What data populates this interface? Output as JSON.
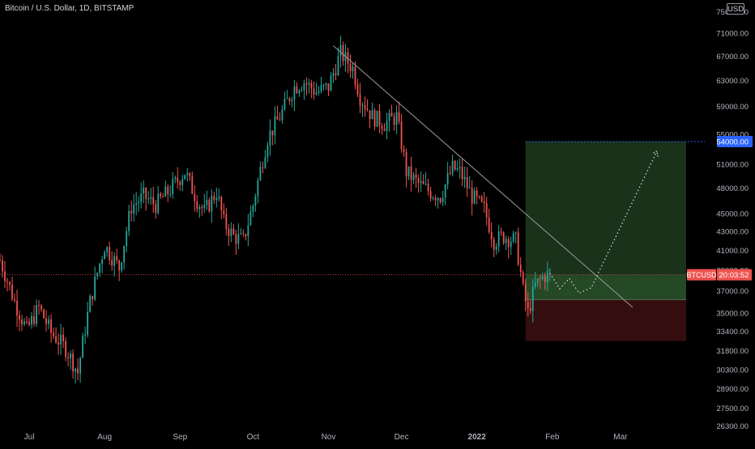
{
  "header": {
    "title": "Bitcoin / U.S. Dollar, 1D, BITSTAMP",
    "currency": "USD"
  },
  "colors": {
    "background": "#000000",
    "up": "#26a69a",
    "down": "#ef5350",
    "text": "#b2b5be",
    "trendline": "#9a9a9a",
    "target_zone": "#1f3a1f",
    "stop_zone": "#3a1010",
    "target_line": "#2962ff"
  },
  "chart_data": {
    "type": "candlestick",
    "symbol": "BTCUSD",
    "timeframe": "1D",
    "y_scale": "log",
    "ylim": [
      26000,
      76000
    ],
    "x_ticks": [
      {
        "label": "Jul",
        "day": 1
      },
      {
        "label": "Aug",
        "day": 32
      },
      {
        "label": "Sep",
        "day": 63
      },
      {
        "label": "Oct",
        "day": 93
      },
      {
        "label": "Nov",
        "day": 124
      },
      {
        "label": "Dec",
        "day": 154
      },
      {
        "label": "2022",
        "day": 185
      },
      {
        "label": "Feb",
        "day": 216
      },
      {
        "label": "Mar",
        "day": 244
      }
    ],
    "x_range_days": [
      -11,
      278
    ],
    "y_ticks": [
      75000,
      71000,
      67000,
      63000,
      59000,
      55000,
      51000,
      48000,
      45000,
      43000,
      41000,
      39000,
      37000,
      35000,
      33400,
      31800,
      30300,
      28900,
      27500,
      26300
    ],
    "y_tick_labels": [
      "75000.00",
      "71000.00",
      "67000.00",
      "63000.00",
      "59000.00",
      "55000.00",
      "51000.00",
      "48000.00",
      "45000.00",
      "43000.00",
      "41000.00",
      "39000.00",
      "37000.00",
      "35000.00",
      "33400.00",
      "31800.00",
      "30300.00",
      "28900.00",
      "27500.00",
      "26300.00"
    ],
    "keyframes": [
      {
        "day": -11,
        "price": 40000
      },
      {
        "day": -5,
        "price": 36000
      },
      {
        "day": 0,
        "price": 33500
      },
      {
        "day": 5,
        "price": 35500
      },
      {
        "day": 10,
        "price": 33300
      },
      {
        "day": 16,
        "price": 32000
      },
      {
        "day": 21,
        "price": 30100
      },
      {
        "day": 26,
        "price": 36000
      },
      {
        "day": 32,
        "price": 41500
      },
      {
        "day": 38,
        "price": 39200
      },
      {
        "day": 43,
        "price": 45800
      },
      {
        "day": 48,
        "price": 47000
      },
      {
        "day": 53,
        "price": 46000
      },
      {
        "day": 58,
        "price": 47500
      },
      {
        "day": 65,
        "price": 50000
      },
      {
        "day": 70,
        "price": 46500
      },
      {
        "day": 73,
        "price": 45200
      },
      {
        "day": 78,
        "price": 47500
      },
      {
        "day": 81,
        "price": 44000
      },
      {
        "day": 85,
        "price": 42500
      },
      {
        "day": 89,
        "price": 42000
      },
      {
        "day": 93,
        "price": 46000
      },
      {
        "day": 99,
        "price": 54500
      },
      {
        "day": 104,
        "price": 57500
      },
      {
        "day": 110,
        "price": 62000
      },
      {
        "day": 114,
        "price": 62800
      },
      {
        "day": 119,
        "price": 61200
      },
      {
        "day": 124,
        "price": 62000
      },
      {
        "day": 129,
        "price": 67500
      },
      {
        "day": 134,
        "price": 65000
      },
      {
        "day": 137,
        "price": 60500
      },
      {
        "day": 142,
        "price": 57500
      },
      {
        "day": 147,
        "price": 56500
      },
      {
        "day": 152,
        "price": 57500
      },
      {
        "day": 156,
        "price": 50000
      },
      {
        "day": 161,
        "price": 48500
      },
      {
        "day": 166,
        "price": 47500
      },
      {
        "day": 170,
        "price": 47000
      },
      {
        "day": 175,
        "price": 50500
      },
      {
        "day": 178,
        "price": 50000
      },
      {
        "day": 183,
        "price": 47000
      },
      {
        "day": 188,
        "price": 45500
      },
      {
        "day": 192,
        "price": 42000
      },
      {
        "day": 196,
        "price": 42500
      },
      {
        "day": 201,
        "price": 42000
      },
      {
        "day": 204,
        "price": 37000
      },
      {
        "day": 206,
        "price": 35000
      },
      {
        "day": 209,
        "price": 37500
      },
      {
        "day": 212,
        "price": 38300
      },
      {
        "day": 215,
        "price": 38700
      }
    ],
    "trendline": {
      "from": {
        "day": 126,
        "price": 68800
      },
      "to": {
        "day": 249,
        "price": 35500
      }
    },
    "position": {
      "entry": 36200,
      "target": 54000,
      "stop": 32600,
      "start_day": 205,
      "end_day": 271
    },
    "current_price": 38550,
    "current_label": "BTCUSD",
    "countdown": "20:03:52",
    "target_label": "54000.00",
    "projection": [
      {
        "day": 215,
        "price": 38700
      },
      {
        "day": 219,
        "price": 37200
      },
      {
        "day": 223,
        "price": 38200
      },
      {
        "day": 227,
        "price": 36800
      },
      {
        "day": 232,
        "price": 37300
      },
      {
        "day": 259,
        "price": 52700
      }
    ]
  }
}
